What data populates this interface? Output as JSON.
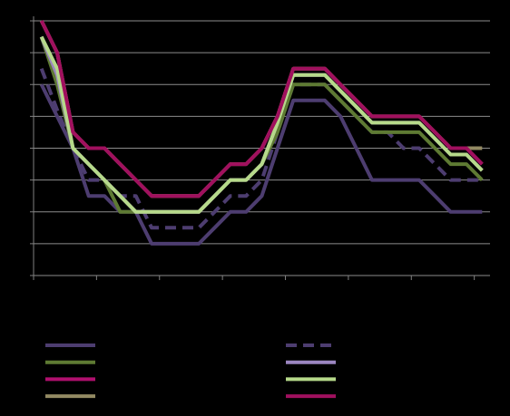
{
  "chart_data": {
    "type": "line",
    "categories": [
      null,
      null,
      null,
      null,
      null,
      null,
      null,
      null,
      null,
      null,
      null,
      null,
      null,
      null,
      null,
      null,
      null,
      null,
      null,
      null,
      null,
      null,
      null,
      null,
      null,
      null,
      null,
      null,
      null
    ],
    "ylim": [
      0,
      8
    ],
    "yticks": [
      0,
      1,
      2,
      3,
      4,
      5,
      6,
      7,
      8
    ],
    "grid": true,
    "series": [
      {
        "color": "#4d3d70",
        "dash": false,
        "values": [
          6,
          5,
          4,
          2.5,
          2.5,
          2,
          2,
          1,
          1,
          1,
          1,
          1.5,
          2,
          2,
          2.5,
          4,
          5.5,
          5.5,
          5.5,
          5,
          4,
          3,
          3,
          3,
          3,
          2.5,
          2,
          2,
          2
        ]
      },
      {
        "color": "#4d3d70",
        "dash": true,
        "values": [
          6.5,
          5.2,
          4,
          3,
          3,
          2.5,
          2.5,
          1.5,
          1.5,
          1.5,
          1.5,
          2,
          2.5,
          2.5,
          3,
          4.5,
          6,
          6,
          6,
          5.5,
          5,
          4.5,
          4.5,
          4,
          4,
          3.5,
          3,
          3,
          3
        ]
      },
      {
        "color": "#5e7a33",
        "dash": false,
        "values": [
          7.5,
          6,
          4,
          3.5,
          3,
          2,
          2,
          2,
          2,
          2,
          2,
          2.5,
          3,
          3,
          3.5,
          4.5,
          6,
          6,
          6,
          5.5,
          5,
          4.5,
          4.5,
          4.5,
          4.5,
          4,
          3.5,
          3.5,
          3
        ]
      },
      {
        "color": "#9b86c0",
        "dash": false,
        "values": [
          7.5,
          6.3,
          4,
          3.5,
          3,
          2.5,
          2,
          2,
          2,
          2,
          2,
          2.5,
          3,
          3,
          3.5,
          4.8,
          6.3,
          6.3,
          6.3,
          5.8,
          5.3,
          4.8,
          4.8,
          4.8,
          4.8,
          4.3,
          3.8,
          3.8,
          3.3
        ]
      },
      {
        "color": "#b0106e",
        "dash": false,
        "values": [
          8,
          7,
          4.5,
          4,
          4,
          3.5,
          3,
          2.5,
          2.5,
          2.5,
          2.5,
          3,
          3.5,
          3.5,
          4,
          5,
          6.5,
          6.5,
          6.5,
          6,
          5.5,
          5,
          5,
          5,
          5,
          4.5,
          4,
          4,
          3.5
        ]
      },
      {
        "color": "#b6d98a",
        "dash": false,
        "values": [
          7.5,
          6.5,
          4,
          3.5,
          3,
          2.5,
          2,
          2,
          2,
          2,
          2,
          2.5,
          3,
          3,
          3.5,
          4.8,
          6.3,
          6.3,
          6.3,
          5.8,
          5.3,
          4.8,
          4.8,
          4.8,
          4.8,
          4.3,
          3.8,
          3.8,
          3.3
        ]
      },
      {
        "color": "#938a63",
        "dash": false,
        "values": [
          8,
          7,
          4.5,
          4,
          4,
          3.5,
          3,
          2.5,
          2.5,
          2.5,
          2.5,
          3,
          3.5,
          3.5,
          4,
          5,
          6.5,
          6.5,
          6.5,
          6,
          5.5,
          5,
          5,
          5,
          5,
          4.5,
          4,
          4,
          4
        ]
      },
      {
        "color": "#a0105e",
        "dash": false,
        "values": [
          8,
          7,
          4.5,
          4,
          4,
          3.5,
          3,
          2.5,
          2.5,
          2.5,
          2.5,
          3,
          3.5,
          3.5,
          4,
          5,
          6.5,
          6.5,
          6.5,
          6,
          5.5,
          5,
          5,
          5,
          5,
          4.5,
          4,
          4,
          3.5
        ]
      }
    ]
  }
}
